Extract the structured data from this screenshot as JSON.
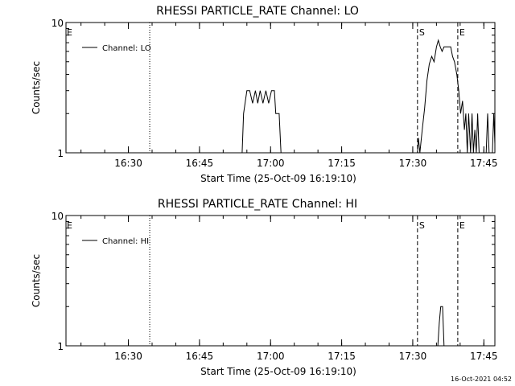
{
  "footer": {
    "timestamp": "16-Oct-2021 04:52"
  },
  "chart_data": [
    {
      "type": "line",
      "title": "RHESSI PARTICLE_RATE Channel: LO",
      "xlabel": "Start Time (25-Oct-09 16:19:10)",
      "ylabel": "Counts/sec",
      "y_scale": "log",
      "ylim": [
        1,
        10
      ],
      "y_ticks": [
        {
          "value": 1,
          "label": "1"
        },
        {
          "value": 10,
          "label": "10"
        }
      ],
      "xlim_minutes": [
        16.83,
        107.33
      ],
      "x_ticks": [
        {
          "value": 30,
          "label": "16:30"
        },
        {
          "value": 45,
          "label": "16:45"
        },
        {
          "value": 60,
          "label": "17:00"
        },
        {
          "value": 75,
          "label": "17:15"
        },
        {
          "value": 90,
          "label": "17:30"
        },
        {
          "value": 105,
          "label": "17:45"
        }
      ],
      "x_unit": "minutes after 16:00",
      "grid": false,
      "legend_position": "top-left",
      "series": [
        {
          "name": "Channel: LO",
          "color": "#000000",
          "points": [
            [
              17.0,
              1.0
            ],
            [
              54.0,
              1.0
            ],
            [
              54.3,
              2.0
            ],
            [
              55.0,
              3.0
            ],
            [
              55.6,
              3.0
            ],
            [
              56.2,
              2.4
            ],
            [
              56.8,
              3.0
            ],
            [
              57.3,
              2.4
            ],
            [
              57.8,
              3.0
            ],
            [
              58.4,
              2.4
            ],
            [
              59.0,
              3.0
            ],
            [
              59.6,
              2.4
            ],
            [
              60.2,
              3.0
            ],
            [
              60.8,
              3.0
            ],
            [
              61.1,
              2.0
            ],
            [
              61.8,
              2.0
            ],
            [
              62.2,
              1.0
            ],
            [
              91.0,
              1.0
            ],
            [
              91.2,
              1.3
            ],
            [
              91.5,
              1.0
            ],
            [
              92.0,
              1.5
            ],
            [
              92.5,
              2.2
            ],
            [
              93.0,
              3.6
            ],
            [
              93.5,
              4.8
            ],
            [
              94.0,
              5.5
            ],
            [
              94.5,
              5.0
            ],
            [
              95.0,
              6.5
            ],
            [
              95.4,
              7.3
            ],
            [
              95.8,
              6.5
            ],
            [
              96.2,
              6.0
            ],
            [
              96.6,
              6.5
            ],
            [
              97.0,
              6.5
            ],
            [
              97.4,
              6.5
            ],
            [
              98.0,
              6.5
            ],
            [
              98.4,
              5.5
            ],
            [
              98.8,
              5.0
            ],
            [
              99.3,
              4.0
            ],
            [
              99.7,
              3.0
            ],
            [
              100.1,
              2.0
            ],
            [
              100.5,
              2.5
            ],
            [
              100.9,
              1.5
            ],
            [
              101.2,
              2.0
            ],
            [
              101.5,
              1.0
            ],
            [
              101.8,
              2.0
            ],
            [
              102.2,
              1.0
            ],
            [
              102.5,
              2.0
            ],
            [
              102.8,
              1.0
            ],
            [
              103.1,
              1.5
            ],
            [
              103.4,
              1.0
            ],
            [
              103.7,
              2.0
            ],
            [
              104.0,
              1.0
            ],
            [
              105.5,
              1.0
            ],
            [
              105.8,
              2.0
            ],
            [
              106.1,
              1.0
            ],
            [
              106.8,
              1.0
            ],
            [
              107.1,
              2.0
            ],
            [
              107.4,
              1.0
            ],
            [
              108.0,
              1.0
            ],
            [
              108.3,
              2.0
            ],
            [
              108.6,
              1.0
            ],
            [
              108.9,
              1.5
            ],
            [
              109.2,
              1.0
            ],
            [
              109.5,
              2.0
            ],
            [
              109.8,
              1.0
            ],
            [
              110.2,
              1.0
            ],
            [
              110.6,
              2.0
            ],
            [
              111.0,
              1.0
            ],
            [
              111.5,
              1.0
            ],
            [
              112.0,
              2.0
            ],
            [
              112.4,
              1.0
            ]
          ]
        }
      ],
      "markers": [
        {
          "label": "E",
          "x": 17.0,
          "style": "dotted",
          "line": false
        },
        {
          "x": 34.5,
          "style": "dotted",
          "label": ""
        },
        {
          "label": "S",
          "x": 91.0,
          "style": "dashed"
        },
        {
          "label": "E",
          "x": 99.5,
          "style": "dashed"
        },
        {
          "x": 114.5,
          "style": "dotted",
          "label": ""
        }
      ]
    },
    {
      "type": "line",
      "title": "RHESSI PARTICLE_RATE Channel: HI",
      "xlabel": "Start Time (25-Oct-09 16:19:10)",
      "ylabel": "Counts/sec",
      "y_scale": "log",
      "ylim": [
        1,
        10
      ],
      "y_ticks": [
        {
          "value": 1,
          "label": "1"
        },
        {
          "value": 10,
          "label": "10"
        }
      ],
      "xlim_minutes": [
        16.83,
        107.33
      ],
      "x_ticks": [
        {
          "value": 30,
          "label": "16:30"
        },
        {
          "value": 45,
          "label": "16:45"
        },
        {
          "value": 60,
          "label": "17:00"
        },
        {
          "value": 75,
          "label": "17:15"
        },
        {
          "value": 90,
          "label": "17:30"
        },
        {
          "value": 105,
          "label": "17:45"
        }
      ],
      "x_unit": "minutes after 16:00",
      "grid": false,
      "legend_position": "top-left",
      "series": [
        {
          "name": "Channel: HI",
          "color": "#000000",
          "points": [
            [
              17.0,
              1.0
            ],
            [
              95.3,
              1.0
            ],
            [
              95.6,
              1.5
            ],
            [
              95.9,
              2.0
            ],
            [
              96.3,
              2.0
            ],
            [
              96.6,
              1.0
            ],
            [
              112.4,
              1.0
            ]
          ]
        }
      ],
      "markers": [
        {
          "label": "E",
          "x": 17.0,
          "style": "dotted",
          "line": false
        },
        {
          "x": 34.5,
          "style": "dotted",
          "label": ""
        },
        {
          "label": "S",
          "x": 91.0,
          "style": "dashed"
        },
        {
          "label": "E",
          "x": 99.5,
          "style": "dashed"
        },
        {
          "x": 114.5,
          "style": "dotted",
          "label": ""
        }
      ]
    }
  ]
}
